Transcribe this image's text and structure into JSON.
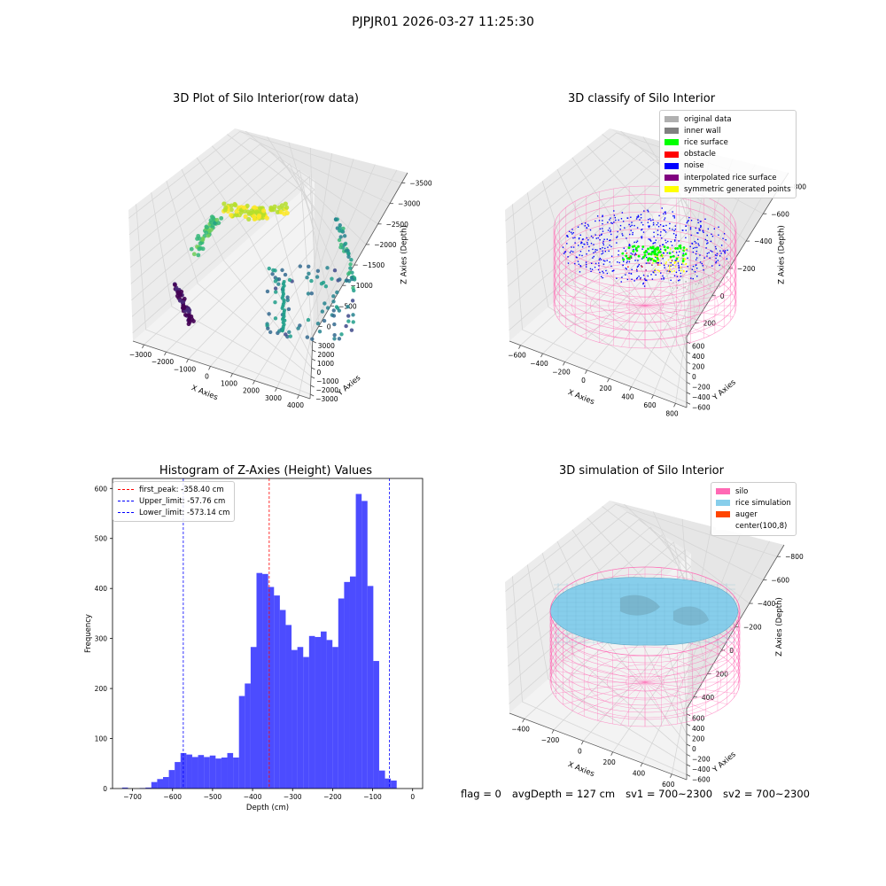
{
  "figure": {
    "suptitle": "PJPJR01 2026-03-27 11:25:30",
    "footer": {
      "flag": "flag = 0",
      "avg_depth": "avgDepth = 127 cm",
      "sv1": "sv1 = 700~2300",
      "sv2": "sv2 = 700~2300"
    }
  },
  "panels": {
    "raw": {
      "title": "3D Plot of Silo Interior(row data)",
      "xlabel": "X Axies",
      "ylabel": "Y Axies",
      "zlabel": "Z Axies (Depth)",
      "xticks": [
        "−3000",
        "−2000",
        "−1000",
        "0",
        "1000",
        "2000",
        "3000",
        "4000"
      ],
      "yticks": [
        "−3000",
        "−2000",
        "−1000",
        "0",
        "1000",
        "2000",
        "3000"
      ],
      "zticks": [
        "0",
        "−500",
        "−1000",
        "−1500",
        "−2000",
        "−2500",
        "−3000",
        "−3500"
      ],
      "colormap": "viridis"
    },
    "classify": {
      "title": "3D classify of Silo Interior",
      "xlabel": "X Axies",
      "ylabel": "Y Axies",
      "zlabel": "Z Axies (Depth)",
      "xticks": [
        "−600",
        "−400",
        "−200",
        "0",
        "200",
        "400",
        "600",
        "800"
      ],
      "yticks": [
        "−600",
        "−400",
        "−200",
        "0",
        "200",
        "400",
        "600"
      ],
      "zticks": [
        "200",
        "0",
        "−200",
        "−400",
        "−600",
        "−800"
      ],
      "legend": [
        {
          "label": "original data",
          "color": "#b0b0b0"
        },
        {
          "label": "inner wall",
          "color": "#808080"
        },
        {
          "label": "rice surface",
          "color": "#00ff00"
        },
        {
          "label": "obstacle",
          "color": "#ff0000"
        },
        {
          "label": "noise",
          "color": "#0000ff"
        },
        {
          "label": "interpolated rice surface",
          "color": "#800080"
        },
        {
          "label": "symmetric generated points",
          "color": "#ffff00"
        }
      ],
      "silo_color": "#ff69b4"
    },
    "simulation": {
      "title": "3D simulation of Silo Interior",
      "xlabel": "X Axies",
      "ylabel": "Y Axies",
      "zlabel": "Z Axies (Depth)",
      "xticks": [
        "−400",
        "−200",
        "0",
        "200",
        "400",
        "600"
      ],
      "yticks": [
        "−600",
        "−400",
        "−200",
        "0",
        "200",
        "400",
        "600"
      ],
      "zticks": [
        "400",
        "200",
        "0",
        "−200",
        "−400",
        "−600",
        "−800"
      ],
      "legend": [
        {
          "label": "silo",
          "color": "#ff69b4"
        },
        {
          "label": "rice simulation",
          "color": "#87ceeb"
        },
        {
          "label": "auger",
          "color": "#ff4500"
        },
        {
          "label": "center(100,8)",
          "color": "#ffffff"
        }
      ]
    }
  },
  "chart_data": [
    {
      "type": "histogram",
      "title": "Histogram of Z-Axies (Height) Values",
      "xlabel": "Depth (cm)",
      "ylabel": "Frequency",
      "bar_color": "#0000ff",
      "bin_width": 14.6,
      "bin_start": -726,
      "xlim": [
        -750,
        25
      ],
      "ylim": [
        0,
        620
      ],
      "xticks": [
        -700,
        -600,
        -500,
        -400,
        -300,
        -200,
        -100,
        0
      ],
      "yticks": [
        0,
        100,
        200,
        300,
        400,
        500,
        600
      ],
      "counts": [
        2,
        0,
        0,
        1,
        2,
        13,
        19,
        23,
        37,
        53,
        71,
        68,
        63,
        67,
        63,
        66,
        60,
        62,
        71,
        62,
        185,
        210,
        283,
        431,
        429,
        403,
        386,
        357,
        327,
        277,
        283,
        263,
        305,
        303,
        314,
        297,
        283,
        380,
        413,
        424,
        589,
        575,
        405,
        255,
        36,
        20,
        16
      ],
      "lines": [
        {
          "label": "first_peak: -358.40 cm",
          "value": -358.4,
          "color": "#ff0000"
        },
        {
          "label": "Upper_limit: -57.76 cm",
          "value": -57.76,
          "color": "#0000ff"
        },
        {
          "label": "Lower_limit: -573.14 cm",
          "value": -573.14,
          "color": "#0000ff"
        }
      ]
    }
  ]
}
